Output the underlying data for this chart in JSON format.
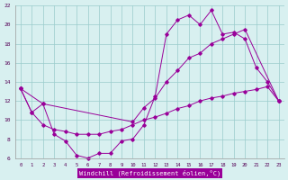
{
  "xlabel": "Windchill (Refroidissement éolien,°C)",
  "bg_color": "#d8f0f0",
  "line_color": "#990099",
  "grid_color": "#99cccc",
  "x_min": -0.5,
  "x_max": 23.5,
  "y_min": 6,
  "y_max": 22,
  "yticks": [
    6,
    8,
    10,
    12,
    14,
    16,
    18,
    20,
    22
  ],
  "line_main_x": [
    0,
    1,
    2,
    3,
    4,
    5,
    6,
    7,
    8,
    9,
    10,
    11,
    12,
    13,
    14,
    15,
    16,
    17,
    18,
    19,
    20,
    21,
    22,
    23
  ],
  "line_main_y": [
    13.3,
    10.8,
    11.7,
    8.5,
    7.8,
    6.3,
    6.0,
    6.5,
    6.5,
    7.8,
    8.0,
    9.5,
    12.5,
    19.0,
    20.5,
    21.0,
    20.0,
    21.5,
    19.0,
    19.2,
    18.5,
    15.5,
    14.0,
    12.0
  ],
  "line_upper_x": [
    0,
    2,
    10,
    11,
    12,
    13,
    14,
    15,
    16,
    17,
    18,
    19,
    20,
    23
  ],
  "line_upper_y": [
    13.3,
    11.7,
    9.8,
    11.3,
    12.3,
    14.0,
    15.2,
    16.5,
    17.0,
    18.0,
    18.5,
    19.0,
    19.5,
    12.0
  ],
  "line_lower_x": [
    0,
    1,
    2,
    3,
    4,
    5,
    6,
    7,
    8,
    9,
    10,
    11,
    12,
    13,
    14,
    15,
    16,
    17,
    18,
    19,
    20,
    21,
    22,
    23
  ],
  "line_lower_y": [
    13.3,
    10.8,
    9.5,
    9.0,
    8.8,
    8.5,
    8.5,
    8.5,
    8.8,
    9.0,
    9.5,
    10.0,
    10.3,
    10.7,
    11.2,
    11.5,
    12.0,
    12.3,
    12.5,
    12.8,
    13.0,
    13.2,
    13.5,
    12.0
  ]
}
